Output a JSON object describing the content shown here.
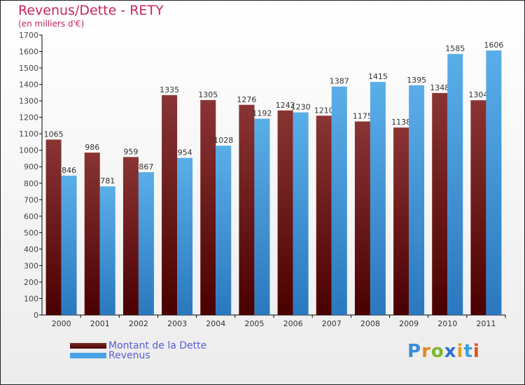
{
  "chart_data": {
    "type": "bar",
    "title": "Revenus/Dette - RETY",
    "subtitle": "(en milliers d'€)",
    "categories": [
      "2000",
      "2001",
      "2002",
      "2003",
      "2004",
      "2005",
      "2006",
      "2007",
      "2008",
      "2009",
      "2010",
      "2011"
    ],
    "series": [
      {
        "name": "Montant de la Dette",
        "color": "#7a2a2a",
        "values": [
          1065,
          986,
          959,
          1335,
          1305,
          1276,
          1242,
          1210,
          1175,
          1138,
          1348,
          1304
        ]
      },
      {
        "name": "Revenus",
        "color": "#4aa3e6",
        "values": [
          846,
          781,
          867,
          954,
          1028,
          1192,
          1230,
          1387,
          1415,
          1395,
          1585,
          1606
        ]
      }
    ],
    "ylim": [
      0,
      1700
    ],
    "yticks": [
      0,
      100,
      200,
      300,
      400,
      500,
      600,
      700,
      800,
      900,
      1000,
      1100,
      1200,
      1300,
      1400,
      1500,
      1600,
      1700
    ],
    "grid": false,
    "legend_position": "bottom-left"
  },
  "logo": "Proxiti"
}
